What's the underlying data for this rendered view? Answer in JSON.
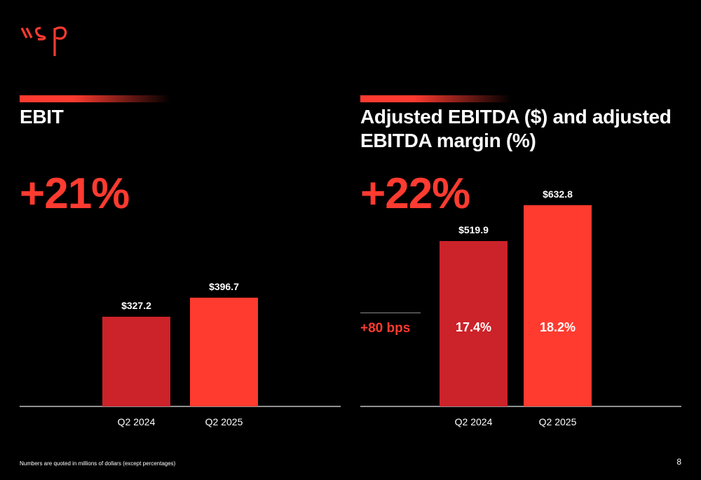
{
  "logo": {
    "text": "wsp",
    "color": "#ff3b30"
  },
  "colors": {
    "accent": "#ff3b30",
    "bar_2024": "#cc2229",
    "bar_2025": "#ff3b30",
    "axis": "#bfbfbf"
  },
  "left_panel": {
    "title": "EBIT",
    "growth": "+21%"
  },
  "right_panel": {
    "title_line1": "Adjusted EBITDA ($) and adjusted",
    "title_line2": "EBITDA margin (%)",
    "growth": "+22%",
    "margin_change": "+80 bps"
  },
  "footnote": "Numbers are quoted in millions of dollars (except percentages)",
  "page_number": "8",
  "chart_data": [
    {
      "type": "bar",
      "title": "EBIT",
      "categories": [
        "Q2 2024",
        "Q2 2025"
      ],
      "values": [
        327.2,
        396.7
      ],
      "value_labels": [
        "$327.2",
        "$396.7"
      ]
    },
    {
      "type": "bar",
      "title": "Adjusted EBITDA ($) and adjusted EBITDA margin (%)",
      "categories": [
        "Q2 2024",
        "Q2 2025"
      ],
      "values": [
        519.9,
        632.8
      ],
      "value_labels": [
        "$519.9",
        "$632.8"
      ],
      "inner_labels": [
        "17.4%",
        "18.2%"
      ],
      "margins": [
        17.4,
        18.2
      ]
    }
  ]
}
